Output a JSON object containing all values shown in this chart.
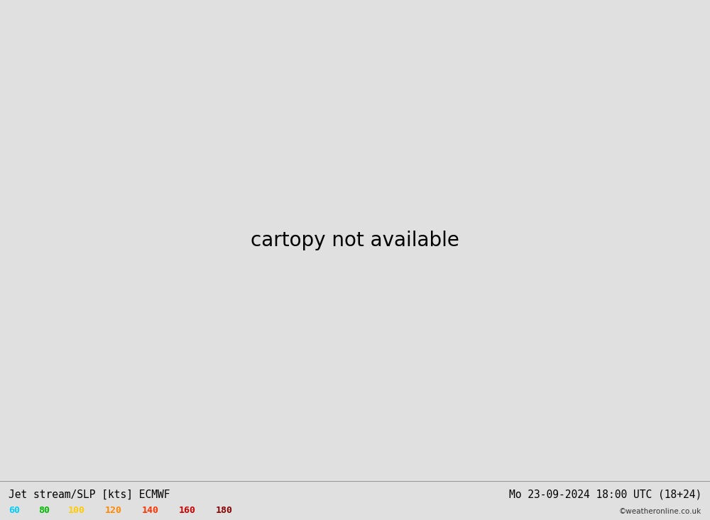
{
  "title_left": "Jet stream/SLP [kts] ECMWF",
  "title_right": "Mo 23-09-2024 18:00 UTC (18+24)",
  "copyright": "©weatheronline.co.uk",
  "background_color": "#e0e0e0",
  "land_color": "#c8ecb0",
  "sea_color": "#e0e0e0",
  "border_color": "#aaaaaa",
  "slp_color": "#1144dd",
  "slp_linewidth": 1.3,
  "jet_red_color": "#dd2200",
  "jet_black_color": "#111111",
  "jet_blue_color": "#1144dd",
  "jet_linewidth": 1.3,
  "legend_items": [
    {
      "label": "60",
      "color": "#00ccff"
    },
    {
      "label": "80",
      "color": "#00bb00"
    },
    {
      "label": "100",
      "color": "#ffcc00"
    },
    {
      "label": "120",
      "color": "#ff8800"
    },
    {
      "label": "140",
      "color": "#ff3300"
    },
    {
      "label": "160",
      "color": "#cc0000"
    },
    {
      "label": "180",
      "color": "#880000"
    }
  ],
  "extent": [
    -12.0,
    12.0,
    48.0,
    63.0
  ],
  "figsize": [
    10.0,
    7.33
  ],
  "dpi": 100,
  "bottom_bar_color": "#c8c8c8",
  "title_fontsize": 10.5,
  "label_fontsize": 8.5,
  "label_bg": "#e0e0e0",
  "wind_color_fills": [
    {
      "color": "#b0e8d0",
      "alpha": 0.6
    },
    {
      "color": "#80d8c0",
      "alpha": 0.5
    },
    {
      "color": "#50c8b0",
      "alpha": 0.4
    }
  ]
}
